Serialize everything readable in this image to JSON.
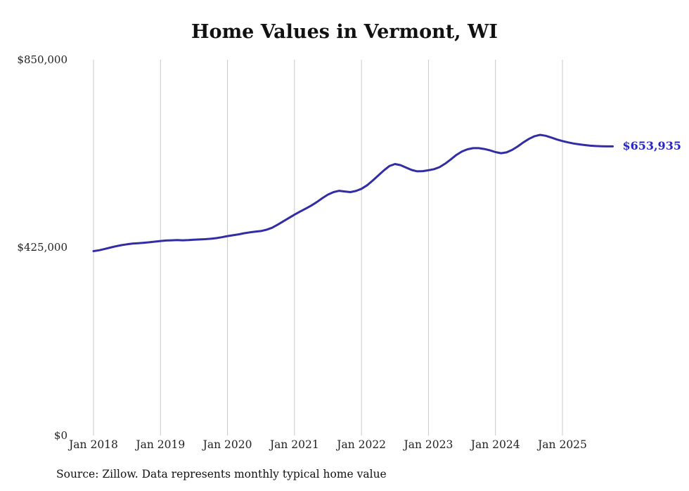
{
  "title": "Home Values in Vermont, WI",
  "end_label": "$653,935",
  "source_note": "Source: Zillow. Data represents monthly typical home value",
  "colors": {
    "line": "#322da5",
    "end_label": "#2626c4",
    "grid": "#c9c9c9",
    "text": "#222222"
  },
  "chart_data": {
    "type": "line",
    "title": "Home Values in Vermont, WI",
    "xlabel": "",
    "ylabel": "",
    "ylim": [
      0,
      850000
    ],
    "grid": "vertical-only",
    "legend": false,
    "x_start_month": "2018-01",
    "x_end_month": "2025-10",
    "x_tick_labels": [
      "Jan 2018",
      "Jan 2019",
      "Jan 2020",
      "Jan 2021",
      "Jan 2022",
      "Jan 2023",
      "Jan 2024",
      "Jan 2025"
    ],
    "y_tick_labels": [
      "$0",
      "$425,000",
      "$850,000"
    ],
    "final_value": 653935,
    "series": [
      {
        "name": "Typical home value (monthly)",
        "values": [
          417000,
          419000,
          422000,
          425000,
          428000,
          430500,
          432500,
          434000,
          435000,
          436000,
          437000,
          438500,
          440000,
          441000,
          441500,
          442000,
          441500,
          442000,
          443000,
          443500,
          444000,
          445000,
          446500,
          448500,
          451000,
          453000,
          455000,
          457500,
          459500,
          461000,
          462500,
          465500,
          470000,
          477000,
          484500,
          492000,
          499500,
          506500,
          513000,
          520000,
          528000,
          537000,
          545000,
          550500,
          553500,
          552000,
          550500,
          553000,
          558000,
          566000,
          576500,
          588000,
          599500,
          609500,
          614000,
          611500,
          606000,
          600500,
          597500,
          598000,
          600000,
          602500,
          607000,
          615000,
          624500,
          634500,
          642500,
          647500,
          650000,
          650000,
          648000,
          645000,
          641000,
          638500,
          640500,
          646000,
          654000,
          663000,
          671000,
          677000,
          680000,
          678000,
          674000,
          669500,
          666000,
          663000,
          660500,
          658500,
          657000,
          655500,
          654800,
          654200,
          654000,
          653935
        ]
      }
    ]
  }
}
